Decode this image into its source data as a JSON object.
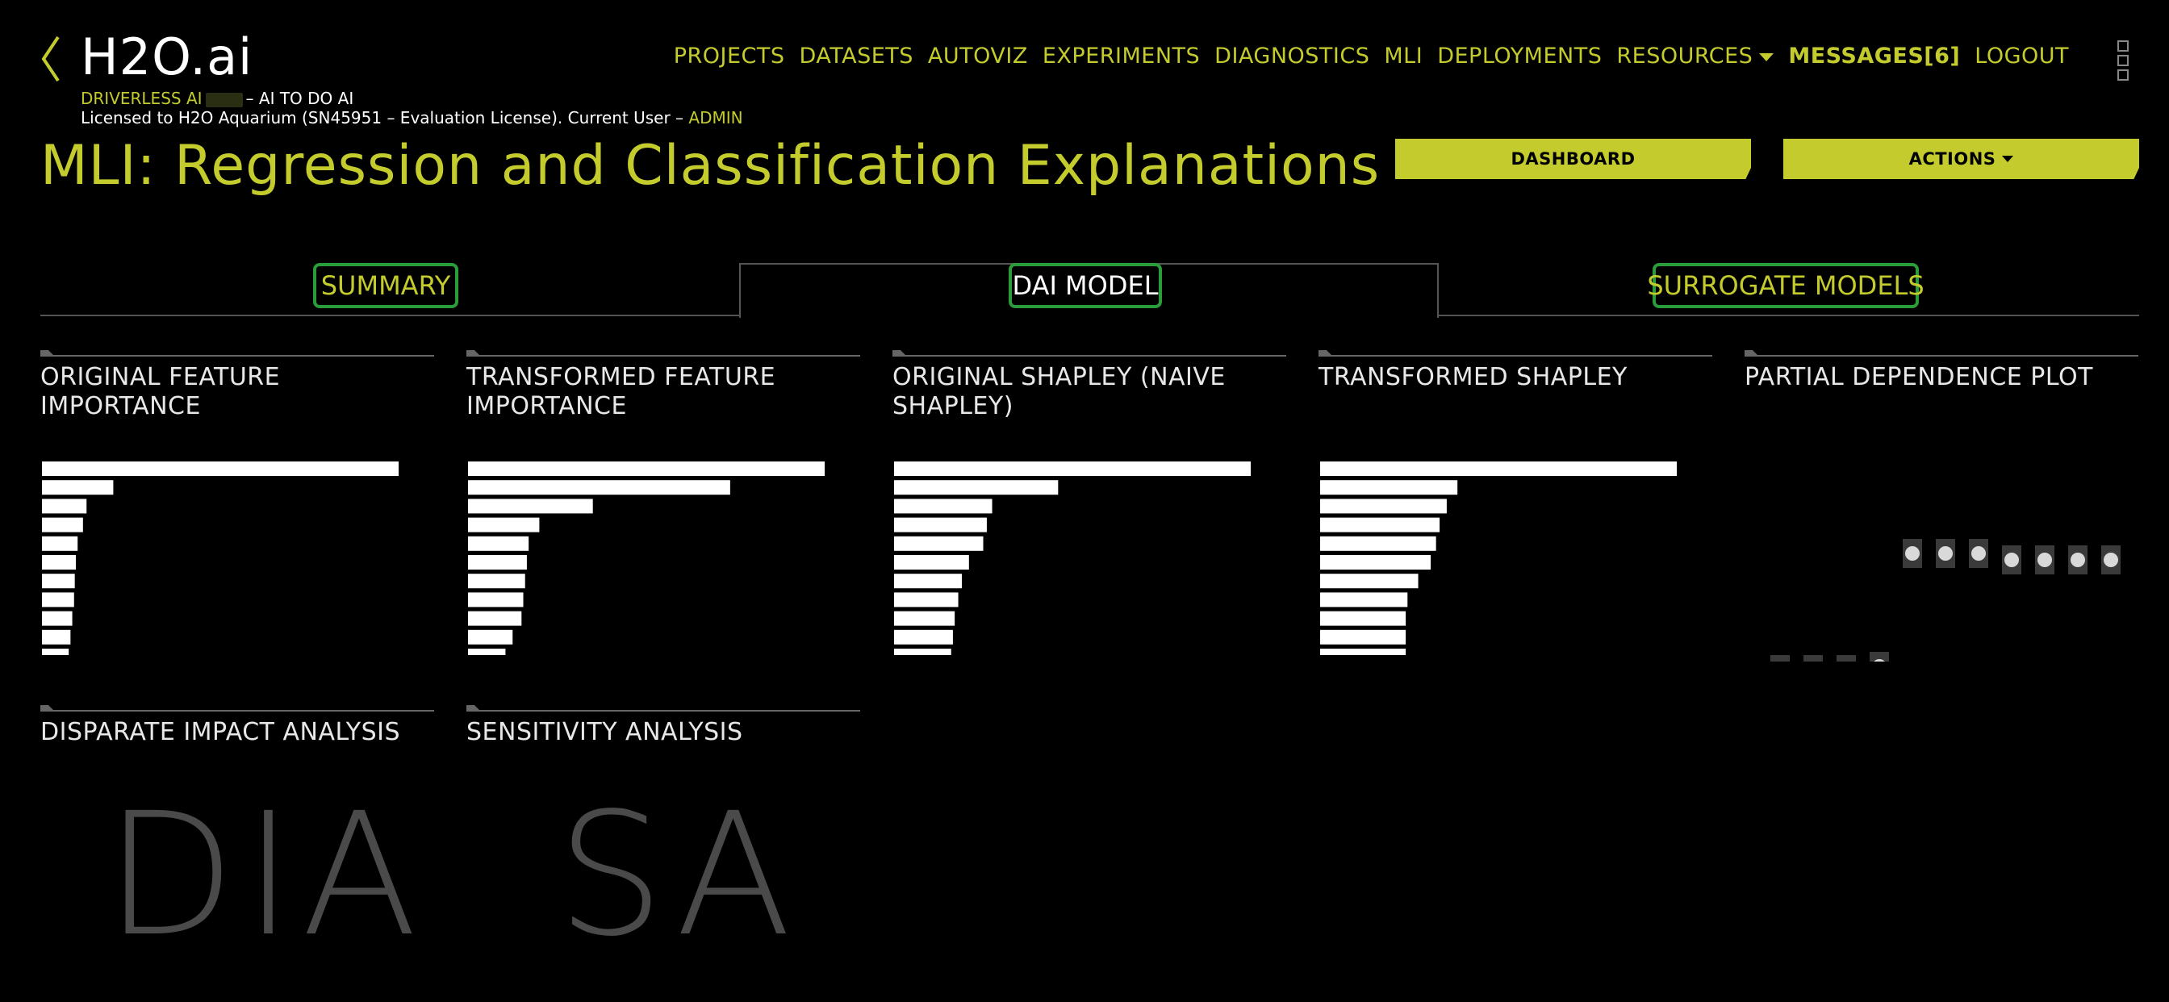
{
  "header": {
    "logo": "H2O.ai",
    "product_name": "DRIVERLESS AI",
    "tagline": "– AI TO DO AI",
    "license_text": "Licensed to H2O Aquarium (SN45951 – Evaluation License). Current User –",
    "current_user": "ADMIN"
  },
  "nav": {
    "items": [
      "PROJECTS",
      "DATASETS",
      "AUTOVIZ",
      "EXPERIMENTS",
      "DIAGNOSTICS",
      "MLI",
      "DEPLOYMENTS",
      "RESOURCES",
      "MESSAGES[6]",
      "LOGOUT"
    ]
  },
  "page": {
    "title": "MLI: Regression and Classification Explanations",
    "dashboard_label": "DASHBOARD",
    "actions_label": "ACTIONS"
  },
  "tabs": {
    "summary": "SUMMARY",
    "dai_model": "DAI MODEL",
    "surrogate_models": "SURROGATE MODELS",
    "active": "DAI MODEL"
  },
  "tiles": {
    "ofi": "ORIGINAL FEATURE IMPORTANCE",
    "tfi": "TRANSFORMED FEATURE IMPORTANCE",
    "osh": "ORIGINAL SHAPLEY (NAIVE SHAPLEY)",
    "tsh": "TRANSFORMED SHAPLEY",
    "pdp": "PARTIAL DEPENDENCE PLOT",
    "dia": "DISPARATE IMPACT ANALYSIS",
    "dia_abbrev": "DIA",
    "sa": "SENSITIVITY ANALYSIS",
    "sa_abbrev": "SA"
  },
  "chart_data": [
    {
      "type": "bar",
      "orientation": "horizontal",
      "values": [
        1.0,
        0.2,
        0.125,
        0.115,
        0.1,
        0.095,
        0.092,
        0.09,
        0.085,
        0.08,
        0.075
      ]
    },
    {
      "type": "bar",
      "orientation": "horizontal",
      "values": [
        1.0,
        0.735,
        0.35,
        0.2,
        0.17,
        0.165,
        0.16,
        0.155,
        0.15,
        0.125,
        0.105
      ]
    },
    {
      "type": "bar",
      "orientation": "horizontal",
      "values": [
        1.0,
        0.46,
        0.275,
        0.26,
        0.25,
        0.21,
        0.19,
        0.18,
        0.17,
        0.165,
        0.16
      ]
    },
    {
      "type": "bar",
      "orientation": "horizontal",
      "values": [
        1.0,
        0.385,
        0.355,
        0.335,
        0.325,
        0.31,
        0.275,
        0.245,
        0.24,
        0.24,
        0.24
      ]
    },
    {
      "type": "scatter",
      "y": [
        0.1,
        0.1,
        0.1,
        0.12,
        0.82,
        0.82,
        0.82,
        0.78,
        0.78,
        0.78,
        0.78
      ]
    }
  ],
  "colors": {
    "accent": "#c3cc2c",
    "tab_outline": "#2a9d3a",
    "bar": "#ffffff",
    "point": "#d9d9d9",
    "point_band": "#3a3a3a"
  }
}
